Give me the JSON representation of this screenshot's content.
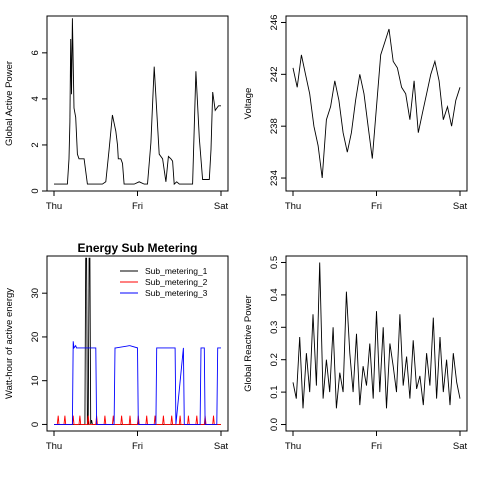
{
  "chart_data": [
    {
      "type": "line",
      "title": "",
      "xlabel": "",
      "ylabel": "Global Active Power",
      "x_ticks": [
        "Thu",
        "Fri",
        "Sat"
      ],
      "x_range_days": [
        0,
        2
      ],
      "y_ticks": [
        0,
        2,
        4,
        6
      ],
      "ylim": [
        0,
        7.6
      ],
      "grid": false,
      "series": [
        {
          "color": "#000000",
          "x": [
            0.0,
            0.05,
            0.1,
            0.16,
            0.18,
            0.19,
            0.2,
            0.21,
            0.22,
            0.24,
            0.26,
            0.28,
            0.3,
            0.33,
            0.36,
            0.4,
            0.44,
            0.48,
            0.52,
            0.55,
            0.58,
            0.62,
            0.66,
            0.7,
            0.74,
            0.76,
            0.77,
            0.79,
            0.8,
            0.82,
            0.84,
            0.86,
            0.9,
            0.96,
            1.02,
            1.08,
            1.12,
            1.16,
            1.2,
            1.26,
            1.3,
            1.34,
            1.37,
            1.4,
            1.42,
            1.44,
            1.47,
            1.5,
            1.55,
            1.6,
            1.66,
            1.7,
            1.74,
            1.78,
            1.82,
            1.86,
            1.88,
            1.9,
            1.93,
            1.95,
            1.97,
            2.0
          ],
          "y": [
            0.3,
            0.3,
            0.3,
            0.3,
            1.4,
            3.0,
            6.6,
            4.2,
            7.5,
            3.6,
            3.2,
            1.6,
            1.4,
            1.4,
            1.4,
            0.3,
            0.3,
            0.3,
            0.3,
            0.3,
            0.3,
            0.4,
            1.8,
            3.3,
            2.6,
            2.0,
            1.4,
            1.4,
            1.4,
            1.2,
            0.3,
            0.3,
            0.3,
            0.3,
            0.4,
            0.3,
            0.3,
            2.1,
            5.4,
            1.6,
            1.4,
            0.4,
            1.5,
            1.4,
            1.3,
            0.3,
            0.4,
            0.3,
            0.3,
            0.3,
            0.3,
            5.2,
            2.3,
            0.5,
            0.5,
            0.5,
            1.8,
            4.3,
            3.5,
            3.6,
            3.7,
            3.7
          ]
        }
      ]
    },
    {
      "type": "line",
      "title": "",
      "xlabel": "",
      "ylabel": "Voltage",
      "x_ticks": [
        "Thu",
        "Fri",
        "Sat"
      ],
      "x_range_days": [
        0,
        2
      ],
      "y_ticks": [
        234,
        238,
        242,
        246
      ],
      "ylim": [
        233,
        246.5
      ],
      "grid": false,
      "series": [
        {
          "color": "#000000",
          "x": [
            0.0,
            0.05,
            0.1,
            0.15,
            0.2,
            0.25,
            0.3,
            0.35,
            0.4,
            0.45,
            0.5,
            0.55,
            0.6,
            0.65,
            0.7,
            0.75,
            0.8,
            0.85,
            0.9,
            0.95,
            1.0,
            1.05,
            1.1,
            1.15,
            1.2,
            1.25,
            1.3,
            1.35,
            1.4,
            1.45,
            1.5,
            1.55,
            1.6,
            1.65,
            1.7,
            1.75,
            1.8,
            1.85,
            1.9,
            1.95,
            2.0
          ],
          "y": [
            242.5,
            241.0,
            243.5,
            242.0,
            240.5,
            238.0,
            236.5,
            234.0,
            238.5,
            239.5,
            241.5,
            240.0,
            237.5,
            236.0,
            237.5,
            240.0,
            242.0,
            240.5,
            238.0,
            235.5,
            239.5,
            243.5,
            244.5,
            245.5,
            243.0,
            242.5,
            241.0,
            240.5,
            238.5,
            241.5,
            237.5,
            239.0,
            240.5,
            242.0,
            243.0,
            241.5,
            238.5,
            239.5,
            238.0,
            240.0,
            241.0
          ]
        }
      ]
    },
    {
      "type": "line",
      "title": "Energy Sub Metering",
      "xlabel": "",
      "ylabel": "Watt-hour of active energy",
      "x_ticks": [
        "Thu",
        "Fri",
        "Sat"
      ],
      "x_range_days": [
        0,
        2
      ],
      "y_ticks": [
        0,
        10,
        20,
        30
      ],
      "ylim": [
        -1.5,
        38.5
      ],
      "grid": false,
      "legend_position": "top-right",
      "legend": [
        "Sub_metering_1",
        "Sub_metering_2",
        "Sub_metering_3"
      ],
      "series": [
        {
          "name": "Sub_metering_1",
          "color": "#000000",
          "x": [
            0.0,
            0.37,
            0.38,
            0.39,
            0.4,
            0.41,
            0.42,
            0.43,
            0.44,
            0.45,
            0.46,
            1.0,
            1.01,
            1.02,
            2.0
          ],
          "y": [
            0,
            0,
            38,
            38,
            0,
            0,
            38,
            38,
            0,
            1,
            0,
            0,
            1,
            0,
            0
          ]
        },
        {
          "name": "Sub_metering_2",
          "color": "#ff0000",
          "x": [
            0.0,
            0.04,
            0.05,
            0.06,
            0.12,
            0.13,
            0.14,
            0.22,
            0.23,
            0.24,
            0.3,
            0.31,
            0.32,
            0.4,
            0.41,
            0.42,
            0.5,
            0.51,
            0.52,
            0.6,
            0.61,
            0.62,
            0.7,
            0.71,
            0.72,
            0.8,
            0.81,
            0.82,
            0.9,
            0.91,
            0.92,
            1.0,
            1.01,
            1.02,
            1.1,
            1.11,
            1.12,
            1.2,
            1.21,
            1.22,
            1.3,
            1.31,
            1.32,
            1.4,
            1.41,
            1.42,
            1.5,
            1.51,
            1.52,
            1.6,
            1.61,
            1.62,
            1.7,
            1.71,
            1.72,
            1.8,
            1.81,
            1.82,
            1.9,
            1.91,
            1.92,
            2.0
          ],
          "y": [
            0,
            0,
            2,
            0,
            0,
            2,
            0,
            0,
            2,
            0,
            0,
            2,
            0,
            0,
            2,
            0,
            0,
            2,
            0,
            0,
            2,
            0,
            0,
            2,
            0,
            0,
            2,
            0,
            0,
            2,
            0,
            0,
            2,
            0,
            0,
            2,
            0,
            0,
            2,
            0,
            0,
            2,
            0,
            0,
            2,
            0,
            0,
            2,
            0,
            0,
            2,
            0,
            0,
            2,
            0,
            0,
            2,
            0,
            0,
            2,
            0,
            0
          ]
        },
        {
          "name": "Sub_metering_3",
          "color": "#0000ff",
          "x": [
            0.0,
            0.22,
            0.23,
            0.24,
            0.26,
            0.27,
            0.28,
            0.29,
            0.5,
            0.51,
            0.72,
            0.73,
            0.74,
            0.9,
            0.91,
            1.0,
            1.01,
            1.22,
            1.23,
            1.45,
            1.46,
            1.55,
            1.56,
            1.75,
            1.76,
            1.8,
            1.81,
            1.95,
            1.96,
            2.0
          ],
          "y": [
            0,
            0,
            19,
            17.5,
            18,
            17.5,
            17.5,
            17.5,
            17.5,
            0,
            0,
            17.5,
            17.5,
            18,
            18,
            17.5,
            0,
            0,
            17.5,
            17.5,
            0,
            17.5,
            0,
            0,
            17.5,
            17.5,
            0,
            0,
            17.5,
            17.5
          ]
        }
      ]
    },
    {
      "type": "line",
      "title": "",
      "xlabel": "",
      "ylabel": "Global Reactive Power",
      "x_ticks": [
        "Thu",
        "Fri",
        "Sat"
      ],
      "x_range_days": [
        0,
        2
      ],
      "y_ticks": [
        0.0,
        0.1,
        0.2,
        0.3,
        0.4,
        0.5
      ],
      "ylim": [
        -0.02,
        0.52
      ],
      "grid": false,
      "series": [
        {
          "color": "#000000",
          "x": [
            0.0,
            0.04,
            0.08,
            0.12,
            0.16,
            0.2,
            0.24,
            0.28,
            0.32,
            0.36,
            0.4,
            0.44,
            0.48,
            0.52,
            0.56,
            0.6,
            0.64,
            0.68,
            0.72,
            0.76,
            0.8,
            0.84,
            0.88,
            0.92,
            0.96,
            1.0,
            1.04,
            1.08,
            1.12,
            1.16,
            1.2,
            1.24,
            1.28,
            1.32,
            1.36,
            1.4,
            1.44,
            1.48,
            1.52,
            1.56,
            1.6,
            1.64,
            1.68,
            1.72,
            1.76,
            1.8,
            1.84,
            1.88,
            1.92,
            1.96,
            2.0
          ],
          "y": [
            0.13,
            0.08,
            0.27,
            0.05,
            0.22,
            0.1,
            0.34,
            0.12,
            0.5,
            0.08,
            0.2,
            0.1,
            0.3,
            0.05,
            0.16,
            0.1,
            0.41,
            0.22,
            0.1,
            0.28,
            0.06,
            0.18,
            0.12,
            0.25,
            0.08,
            0.35,
            0.1,
            0.3,
            0.05,
            0.25,
            0.18,
            0.1,
            0.34,
            0.12,
            0.21,
            0.08,
            0.26,
            0.11,
            0.15,
            0.06,
            0.22,
            0.12,
            0.33,
            0.08,
            0.27,
            0.1,
            0.2,
            0.06,
            0.22,
            0.13,
            0.08
          ]
        }
      ]
    }
  ]
}
